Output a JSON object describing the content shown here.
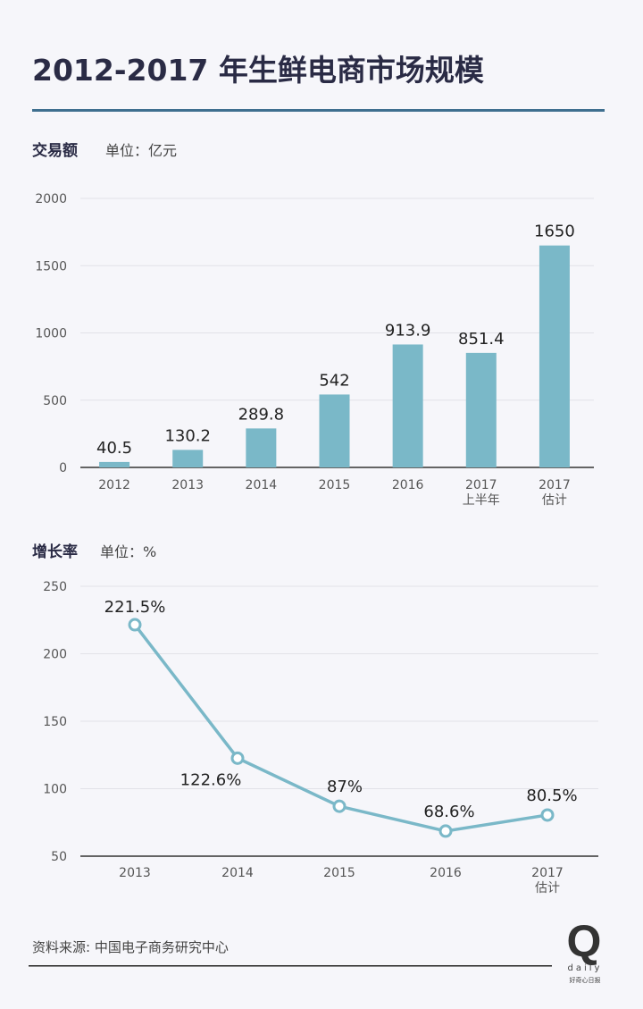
{
  "title": "2012-2017 年生鲜电商市场规模",
  "colors": {
    "accent": "#7ab8c8",
    "title": "#2a2b45",
    "rule": "#3f6f8f"
  },
  "source": "资料来源: 中国电子商务研究中心",
  "logo": {
    "letter": "Q",
    "word": "daily",
    "cn": "好奇心日报"
  },
  "chart_data": [
    {
      "type": "bar",
      "label": "交易额",
      "unit": "单位：亿元",
      "categories": [
        [
          "2012"
        ],
        [
          "2013"
        ],
        [
          "2014"
        ],
        [
          "2015"
        ],
        [
          "2016"
        ],
        [
          "2017",
          "上半年"
        ],
        [
          "2017",
          "估计"
        ]
      ],
      "values": [
        40.5,
        130.2,
        289.8,
        542,
        913.9,
        851.4,
        1650
      ],
      "value_labels": [
        "40.5",
        "130.2",
        "289.8",
        "542",
        "913.9",
        "851.4",
        "1650"
      ],
      "yticks": [
        "0",
        "500",
        "1000",
        "1500",
        "2000"
      ],
      "ylim": [
        0,
        2000
      ],
      "grid": true
    },
    {
      "type": "line",
      "label": "增长率",
      "unit": "单位：%",
      "categories": [
        [
          "2013"
        ],
        [
          "2014"
        ],
        [
          "2015"
        ],
        [
          "2016"
        ],
        [
          "2017",
          "估计"
        ]
      ],
      "values": [
        221.5,
        122.6,
        87,
        68.6,
        80.5
      ],
      "value_labels": [
        "221.5%",
        "122.6%",
        "87%",
        "68.6%",
        "80.5%"
      ],
      "yticks": [
        "50",
        "100",
        "150",
        "200",
        "250"
      ],
      "ylim": [
        50,
        250
      ],
      "grid": true
    }
  ]
}
